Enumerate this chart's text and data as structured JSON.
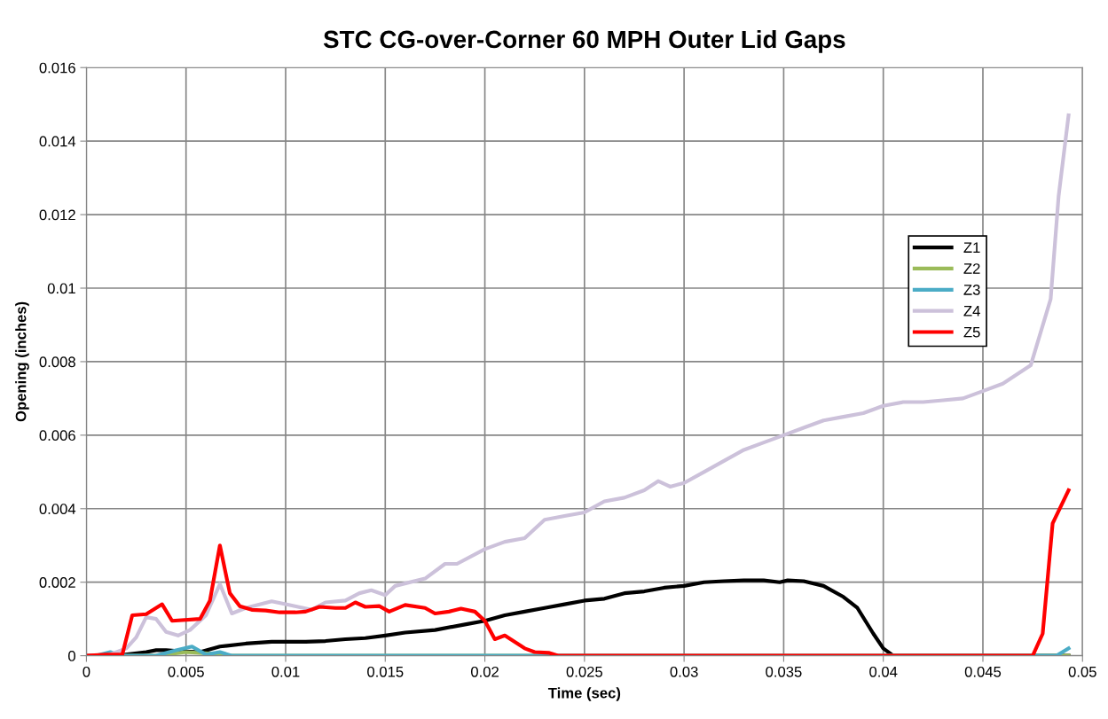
{
  "chart_data": {
    "type": "line",
    "title": "STC CG-over-Corner 60 MPH Outer Lid Gaps",
    "xlabel": "Time (sec)",
    "ylabel": "Opening (inches)",
    "xlim": [
      0,
      0.05
    ],
    "xticks": [
      0,
      0.005,
      0.01,
      0.015,
      0.02,
      0.025,
      0.03,
      0.035,
      0.04,
      0.045,
      0.05
    ],
    "ylim": [
      0,
      0.016
    ],
    "yticks": [
      0,
      0.002,
      0.004,
      0.006,
      0.008,
      0.01,
      0.012,
      0.014,
      0.016
    ],
    "grid": true,
    "legend": "right",
    "marker": "none",
    "line_style": "solid",
    "series": [
      {
        "name": "Z1",
        "color": "#000000",
        "x": [
          0,
          0.0015,
          0.003,
          0.0035,
          0.004,
          0.0047,
          0.0057,
          0.0067,
          0.008,
          0.0093,
          0.011,
          0.012,
          0.013,
          0.014,
          0.015,
          0.016,
          0.0175,
          0.019,
          0.02,
          0.021,
          0.022,
          0.023,
          0.024,
          0.025,
          0.026,
          0.027,
          0.028,
          0.029,
          0.03,
          0.031,
          0.032,
          0.033,
          0.034,
          0.0348,
          0.0352,
          0.036,
          0.037,
          0.038,
          0.0387,
          0.0395,
          0.04,
          0.0405,
          0.0493
        ],
        "values": [
          0,
          0,
          0.0001,
          0.00015,
          0.00015,
          0.00012,
          0.0001,
          0.00025,
          0.00033,
          0.00038,
          0.00038,
          0.0004,
          0.00045,
          0.00048,
          0.00055,
          0.00063,
          0.0007,
          0.00085,
          0.00095,
          0.0011,
          0.0012,
          0.0013,
          0.0014,
          0.0015,
          0.00155,
          0.0017,
          0.00175,
          0.00185,
          0.0019,
          0.002,
          0.00203,
          0.00205,
          0.00205,
          0.002,
          0.00205,
          0.00203,
          0.0019,
          0.0016,
          0.0013,
          0.0006,
          0.0002,
          0,
          0
        ]
      },
      {
        "name": "Z2",
        "color": "#9bbb59",
        "x": [
          0,
          0.0035,
          0.005,
          0.0065,
          0.0073,
          0.0493
        ],
        "values": [
          0,
          0,
          0.0001,
          5e-05,
          0,
          0
        ]
      },
      {
        "name": "Z3",
        "color": "#4bacc6",
        "x": [
          0,
          0.0005,
          0.0012,
          0.0017,
          0.0035,
          0.0045,
          0.0053,
          0.006,
          0.0067,
          0.0073,
          0.0487,
          0.0493
        ],
        "values": [
          0,
          0,
          0.0001,
          0,
          0,
          0.00015,
          0.00025,
          3e-05,
          0.0001,
          0,
          0,
          0.0002
        ]
      },
      {
        "name": "Z4",
        "color": "#ccc1da",
        "x": [
          0,
          0.001,
          0.002,
          0.0025,
          0.003,
          0.0035,
          0.004,
          0.0046,
          0.0052,
          0.006,
          0.0067,
          0.0073,
          0.008,
          0.0093,
          0.01,
          0.0113,
          0.012,
          0.013,
          0.0137,
          0.0143,
          0.015,
          0.0155,
          0.017,
          0.018,
          0.0186,
          0.02,
          0.021,
          0.022,
          0.023,
          0.024,
          0.025,
          0.026,
          0.027,
          0.028,
          0.0287,
          0.0293,
          0.03,
          0.031,
          0.032,
          0.033,
          0.034,
          0.035,
          0.036,
          0.037,
          0.038,
          0.039,
          0.04,
          0.041,
          0.042,
          0.043,
          0.044,
          0.045,
          0.046,
          0.0474,
          0.0484,
          0.0488,
          0.0493
        ],
        "values": [
          0,
          0,
          0.0002,
          0.0005,
          0.00105,
          0.001,
          0.00065,
          0.00055,
          0.0007,
          0.0011,
          0.00195,
          0.00115,
          0.0013,
          0.00148,
          0.0014,
          0.00125,
          0.00145,
          0.0015,
          0.0017,
          0.00178,
          0.00165,
          0.0019,
          0.0021,
          0.0025,
          0.0025,
          0.0029,
          0.0031,
          0.0032,
          0.0037,
          0.0038,
          0.0039,
          0.0042,
          0.0043,
          0.0045,
          0.00475,
          0.0046,
          0.0047,
          0.005,
          0.0053,
          0.0056,
          0.0058,
          0.006,
          0.0062,
          0.0064,
          0.0065,
          0.0066,
          0.0068,
          0.0069,
          0.0069,
          0.00695,
          0.007,
          0.0072,
          0.0074,
          0.0079,
          0.0097,
          0.0125,
          0.0147
        ]
      },
      {
        "name": "Z5",
        "color": "#ff0000",
        "x": [
          0,
          0.001,
          0.0018,
          0.0023,
          0.003,
          0.0038,
          0.0043,
          0.0057,
          0.0062,
          0.0067,
          0.0072,
          0.0077,
          0.0083,
          0.009,
          0.0097,
          0.0105,
          0.011,
          0.0117,
          0.0125,
          0.013,
          0.0135,
          0.014,
          0.0147,
          0.0152,
          0.016,
          0.017,
          0.0175,
          0.0182,
          0.0188,
          0.0195,
          0.02,
          0.0205,
          0.021,
          0.022,
          0.0225,
          0.0232,
          0.0237,
          0.0475,
          0.048,
          0.0485,
          0.0493
        ],
        "values": [
          0,
          3e-05,
          3e-05,
          0.0011,
          0.00113,
          0.0014,
          0.00095,
          0.001,
          0.0015,
          0.003,
          0.0017,
          0.00135,
          0.00125,
          0.00123,
          0.00118,
          0.00118,
          0.0012,
          0.00133,
          0.0013,
          0.0013,
          0.00145,
          0.00133,
          0.00135,
          0.0012,
          0.00138,
          0.0013,
          0.00115,
          0.0012,
          0.00128,
          0.0012,
          0.00095,
          0.00045,
          0.00055,
          0.0002,
          0.0001,
          8e-05,
          0,
          0,
          0.0006,
          0.0036,
          0.0045
        ]
      }
    ]
  }
}
